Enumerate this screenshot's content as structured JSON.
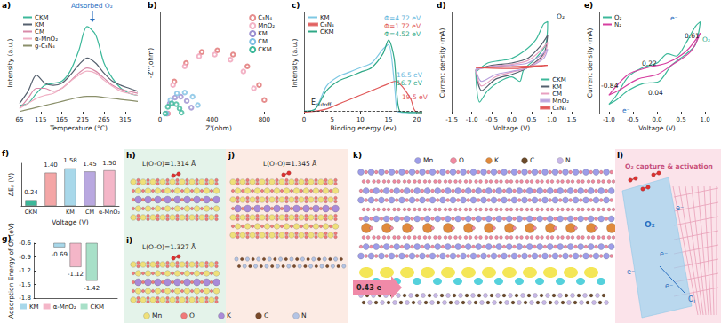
{
  "chart_data": [
    {
      "panel": "a)",
      "type": "line",
      "x_label": "Temperature (°C)",
      "y_label": "Intensity (a.u.)",
      "x": [
        65,
        85,
        105,
        125,
        145,
        165,
        185,
        205,
        225,
        245,
        265,
        285,
        305,
        325,
        345
      ],
      "xlim": [
        65,
        345
      ],
      "xticks": [
        65,
        115,
        165,
        215,
        265,
        315
      ],
      "ylim": [
        0,
        1
      ],
      "tick_labels": "x",
      "legend": "upper left",
      "annotations": [
        "Adsorbed O₂"
      ],
      "series": [
        {
          "name": "CKM",
          "color": "#3cb89a",
          "values": [
            0.08,
            0.1,
            0.2,
            0.28,
            0.3,
            0.32,
            0.42,
            0.62,
            0.86,
            0.78,
            0.5,
            0.35,
            0.25,
            0.2,
            0.18
          ]
        },
        {
          "name": "KM",
          "color": "#55606e",
          "values": [
            0.1,
            0.22,
            0.38,
            0.3,
            0.28,
            0.3,
            0.38,
            0.48,
            0.55,
            0.5,
            0.4,
            0.32,
            0.28,
            0.25,
            0.22
          ]
        },
        {
          "name": "CM",
          "color": "#d88aa8",
          "values": [
            0.05,
            0.15,
            0.25,
            0.25,
            0.22,
            0.25,
            0.32,
            0.4,
            0.45,
            0.42,
            0.35,
            0.28,
            0.24,
            0.22,
            0.2
          ]
        },
        {
          "name": "α-MnO₂",
          "color": "#f0b0c4",
          "values": [
            0.05,
            0.1,
            0.15,
            0.18,
            0.2,
            0.25,
            0.32,
            0.38,
            0.42,
            0.4,
            0.33,
            0.27,
            0.22,
            0.2,
            0.18
          ]
        },
        {
          "name": "g-C₃N₄",
          "color": "#8a8f6a",
          "values": [
            0.02,
            0.04,
            0.06,
            0.08,
            0.1,
            0.12,
            0.14,
            0.16,
            0.17,
            0.17,
            0.16,
            0.15,
            0.14,
            0.13,
            0.12
          ]
        }
      ]
    },
    {
      "panel": "b)",
      "type": "scatter",
      "marker": "open circle",
      "x_label": "Z'(ohm)",
      "y_label": "-Z''(ohm)",
      "xlim": [
        0,
        900
      ],
      "xticks": [
        0,
        400,
        800
      ],
      "ylim": [
        0,
        600
      ],
      "tick_labels": "x",
      "legend": "upper right",
      "series": [
        {
          "name": "C₃N₄",
          "color": "#e07070",
          "x": [
            60,
            110,
            200,
            320,
            440,
            560,
            670,
            760,
            800
          ],
          "values": [
            0,
            190,
            300,
            365,
            375,
            350,
            280,
            170,
            80
          ]
        },
        {
          "name": "MnO₂",
          "color": "#f0a0b8",
          "x": [
            60,
            100,
            190,
            300,
            420,
            540,
            640,
            720
          ],
          "values": [
            0,
            170,
            280,
            340,
            350,
            320,
            250,
            150
          ]
        },
        {
          "name": "KM",
          "color": "#9b8fd0",
          "x": [
            50,
            75,
            115,
            160,
            205,
            240
          ],
          "values": [
            0,
            60,
            95,
            100,
            75,
            35
          ]
        },
        {
          "name": "CM",
          "color": "#7fc0e4",
          "x": [
            50,
            80,
            130,
            190,
            250,
            290
          ],
          "values": [
            0,
            80,
            120,
            125,
            100,
            50
          ]
        },
        {
          "name": "CKM",
          "color": "#3cb89a",
          "x": [
            40,
            60,
            90,
            125,
            150,
            165
          ],
          "values": [
            0,
            40,
            60,
            55,
            30,
            5
          ]
        }
      ]
    },
    {
      "panel": "c)",
      "type": "line",
      "x_label": "Binding energy (ev)",
      "y_label": "Intensity (a.u.)",
      "x": [
        0,
        2,
        4,
        6,
        8,
        10,
        12,
        14,
        15,
        16,
        16.5,
        17,
        18,
        19,
        19.5,
        20,
        21
      ],
      "xlim": [
        0,
        21
      ],
      "xticks": [
        0,
        5,
        10,
        15,
        20
      ],
      "ylim": [
        0,
        22
      ],
      "tick_labels": "x",
      "legend": "upper left",
      "annotations": [
        "Φ=4.72 eV",
        "Φ=1.72 eV",
        "Φ=4.52 eV",
        "16.5 eV",
        "16.7 eV",
        "19.5 eV"
      ],
      "reference_line": {
        "y": 0.5,
        "line_style": "dashed",
        "label": {
          "text": "E",
          "subscript": "cutoff"
        }
      },
      "series": [
        {
          "name": "KM",
          "color": "#7ec8e3",
          "values": [
            0.5,
            1,
            6,
            8,
            9,
            10,
            11,
            14,
            15,
            7,
            0.5,
            0.3,
            0.2,
            0.2,
            0.2,
            0.2,
            0.2
          ]
        },
        {
          "name": "C₃N₄",
          "color": "#e05a5a",
          "values": [
            0.3,
            0.5,
            1,
            2,
            3,
            4,
            5,
            6,
            6.5,
            7,
            7,
            6.5,
            5,
            3,
            1,
            0.3,
            0.2
          ]
        },
        {
          "name": "CKM",
          "color": "#2fa886",
          "values": [
            0.5,
            1,
            5,
            7,
            8,
            9,
            10,
            13,
            16,
            12,
            4,
            0.5,
            0.3,
            0.2,
            0.2,
            0.2,
            0.2
          ]
        }
      ]
    },
    {
      "panel": "d)",
      "type": "line",
      "x_label": "Voltage (V)",
      "y_label": "Current density (mA)",
      "xlim": [
        -1.5,
        1.5
      ],
      "xticks": [
        -1.5,
        {
          "value": -1,
          "label": "-1.0"
        },
        -0.5,
        {
          "value": 0,
          "label": "0.0"
        },
        0.5,
        {
          "value": 1,
          "label": "1.0"
        },
        1.5
      ],
      "ylim": [
        -1,
        1.2
      ],
      "tick_labels": "x",
      "legend": "lower right",
      "annotations": [
        "O₂"
      ],
      "series": [
        {
          "name": "CKM",
          "color": "#3cb89a",
          "x": [
            -0.9,
            -0.6,
            -0.3,
            0.0,
            0.3,
            0.6,
            0.8,
            0.9,
            0.85,
            0.6,
            0.3,
            0.2,
            0.0,
            -0.3,
            -0.6,
            -0.8,
            -0.9
          ],
          "values": [
            -0.1,
            0.1,
            0.15,
            0.2,
            0.35,
            0.6,
            0.95,
            1.0,
            0.5,
            0.2,
            -0.05,
            -0.3,
            -0.2,
            -0.3,
            -0.5,
            -0.75,
            -0.1
          ]
        },
        {
          "name": "KM",
          "color": "#55606e",
          "x": [
            -0.9,
            -0.5,
            0,
            0.4,
            0.7,
            0.9,
            0.8,
            0.4,
            0,
            -0.4,
            -0.75,
            -0.9
          ],
          "values": [
            -0.05,
            0.05,
            0.1,
            0.2,
            0.45,
            0.7,
            0.3,
            0.0,
            -0.15,
            -0.25,
            -0.5,
            -0.05
          ]
        },
        {
          "name": "CM",
          "color": "#e8a0c0",
          "x": [
            -0.9,
            -0.5,
            0,
            0.4,
            0.7,
            0.9,
            0.8,
            0.4,
            0,
            -0.4,
            -0.75,
            -0.9
          ],
          "values": [
            -0.05,
            0.03,
            0.07,
            0.15,
            0.35,
            0.55,
            0.25,
            0.0,
            -0.1,
            -0.2,
            -0.4,
            -0.05
          ]
        },
        {
          "name": "MnO₂",
          "color": "#b9a0dc",
          "x": [
            -0.9,
            -0.5,
            0,
            0.4,
            0.7,
            0.9,
            0.8,
            0.4,
            0,
            -0.4,
            -0.75,
            -0.9
          ],
          "values": [
            -0.03,
            0.02,
            0.05,
            0.1,
            0.25,
            0.4,
            0.2,
            0.0,
            -0.08,
            -0.15,
            -0.3,
            -0.03
          ]
        },
        {
          "name": "C₃N₄",
          "color": "#e05050",
          "x": [
            -0.9,
            0,
            0.9,
            0,
            -0.9
          ],
          "values": [
            0,
            0.02,
            0.05,
            -0.02,
            0
          ]
        }
      ]
    },
    {
      "panel": "e)",
      "type": "line",
      "x_label": "Voltage (V)",
      "y_label": "Current density (mA)",
      "xlim": [
        -1.2,
        1.2
      ],
      "xticks": [
        {
          "value": -1,
          "label": "-1.0"
        },
        -0.5,
        {
          "value": 0,
          "label": "0.0"
        },
        0.5,
        {
          "value": 1,
          "label": "1.0"
        }
      ],
      "ylim": [
        -1,
        1.2
      ],
      "tick_labels": "x",
      "legend": "upper left",
      "annotations": [
        "0.61",
        "0.22",
        "-0.84",
        "0.04",
        "O₂",
        "e⁻",
        "e⁻"
      ],
      "series": [
        {
          "name": "O₂",
          "color": "#3cb89a",
          "x": [
            -1.0,
            -0.84,
            -0.6,
            -0.3,
            0,
            0.22,
            0.4,
            0.61,
            0.8,
            0.9,
            0.8,
            0.61,
            0.3,
            0.04,
            -0.3,
            -0.6,
            -0.84,
            -1.0
          ],
          "values": [
            -0.8,
            -0.6,
            -0.2,
            0,
            0.1,
            0.3,
            0.25,
            0.55,
            0.9,
            1.0,
            0.5,
            0.3,
            0.05,
            -0.3,
            -0.35,
            -0.5,
            -0.7,
            -0.8
          ]
        },
        {
          "name": "N₂",
          "color": "#d63fa0",
          "x": [
            -1.0,
            -0.6,
            -0.2,
            0.2,
            0.6,
            0.9,
            0.7,
            0.3,
            0,
            -0.4,
            -0.8,
            -1.0
          ],
          "values": [
            -0.6,
            -0.15,
            0,
            0.1,
            0.35,
            0.75,
            0.35,
            0.05,
            -0.15,
            -0.25,
            -0.5,
            -0.6
          ]
        }
      ]
    },
    {
      "panel": "f)",
      "type": "bar",
      "x_label": "Voltage (V)",
      "y_label": "ΔEₚ (V)",
      "categories": [
        "CKM",
        null,
        "KM",
        "CM",
        "α-MnO₂"
      ],
      "values": [
        0.24,
        1.4,
        1.58,
        1.45,
        1.5
      ],
      "value_labels": [
        "0.24",
        "1.40",
        "1.58",
        "1.45",
        "1.50"
      ],
      "colors": [
        "#3cb89a",
        "#f4a6a6",
        "#a8d8ea",
        "#b9a8e0",
        "#f4b6c8"
      ],
      "ylim": [
        0,
        1.8
      ],
      "tick_labels": "x",
      "data_labels": true
    },
    {
      "panel": "g)",
      "type": "bar",
      "y_label": "Adsorption Energy of O₂ (eV)",
      "ylim": [
        -1.8,
        -0.6
      ],
      "yticks": [
        -0.6,
        -0.9,
        -1.2,
        -1.5,
        -1.8
      ],
      "tick_labels": "y",
      "data_labels": true,
      "legend": "lower left",
      "series": [
        {
          "name": "KM",
          "color": "#a8d8ea",
          "values": [
            -0.69
          ]
        },
        {
          "name": "α-MnO₂",
          "color": "#f4b6c8",
          "values": [
            -1.12
          ]
        },
        {
          "name": "CKM",
          "color": "#a8e0c8",
          "values": [
            -1.42
          ]
        }
      ]
    }
  ],
  "structures": {
    "panels": [
      {
        "panel": "h)",
        "label": "L(O-O)=1.314 Å"
      },
      {
        "panel": "i)",
        "label": "L(O-O)=1.327 Å"
      },
      {
        "panel": "j)",
        "label": "L(O-O)=1.345 Å"
      },
      {
        "panel": "k)",
        "label": "0.43 e"
      },
      {
        "panel": "l)",
        "labels": [
          "O₂ capture & activation",
          "O₂",
          "e⁻",
          "e⁻",
          "e⁻",
          "e⁻"
        ],
        "subscripted": {
          "text": "O",
          "subscript": "L"
        }
      }
    ],
    "legend_hij": [
      {
        "name": "Mn",
        "color": "#efe07a"
      },
      {
        "name": "O",
        "color": "#f07a7a"
      },
      {
        "name": "K",
        "color": "#a98bd8"
      },
      {
        "name": "C",
        "color": "#7a4a2a"
      },
      {
        "name": "N",
        "color": "#b4c4e4"
      }
    ],
    "legend_k": [
      {
        "name": "Mn",
        "color": "#9d9de8"
      },
      {
        "name": "O",
        "color": "#f08aa0"
      },
      {
        "name": "K",
        "color": "#e08a3c"
      },
      {
        "name": "C",
        "color": "#6b4a2a"
      },
      {
        "name": "N",
        "color": "#c8b8e8"
      }
    ]
  }
}
